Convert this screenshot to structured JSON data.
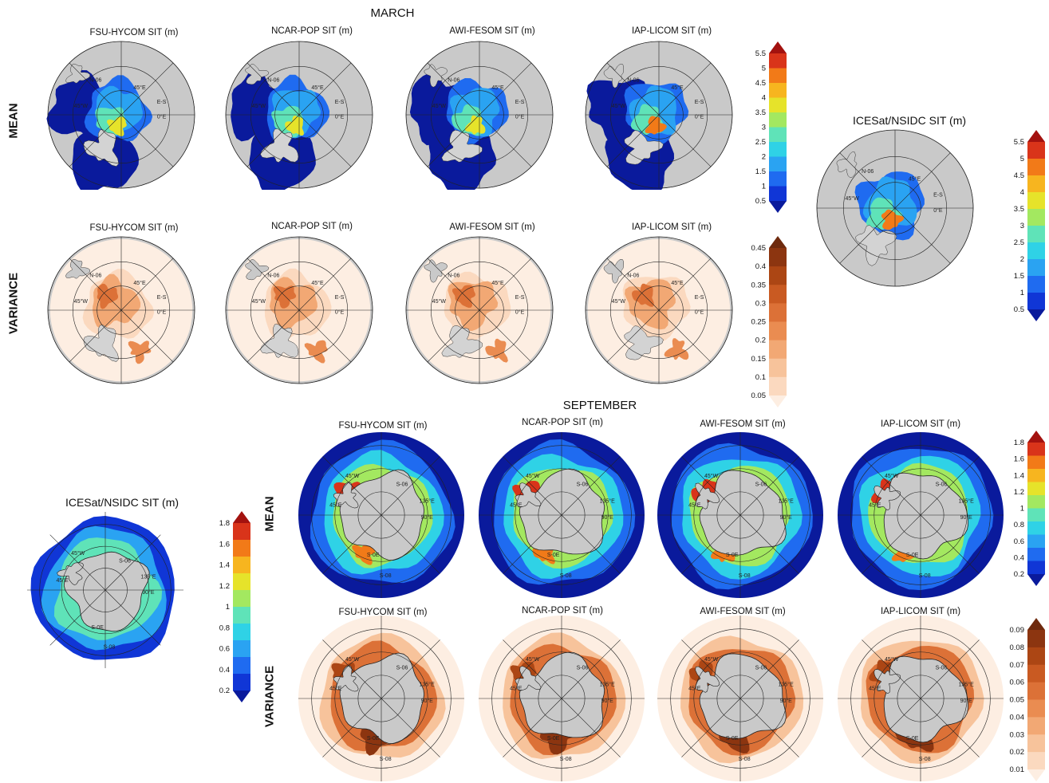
{
  "sections": {
    "march": "MARCH",
    "september": "SEPTEMBER"
  },
  "row_labels": {
    "mean": "MEAN",
    "variance": "VARIANCE"
  },
  "march_mean_titles": [
    "FSU-HYCOM SIT (m)",
    "NCAR-POP SIT (m)",
    "AWI-FESOM SIT (m)",
    "IAP-LICOM SIT (m)"
  ],
  "march_var_titles": [
    "FSU-HYCOM SIT (m)",
    "NCAR-POP SIT (m)",
    "AWI-FESOM SIT (m)",
    "IAP-LICOM SIT (m)"
  ],
  "sep_mean_titles": [
    "FSU-HYCOM SIT (m)",
    "NCAR-POP SIT (m)",
    "AWI-FESOM SIT (m)",
    "IAP-LICOM SIT (m)"
  ],
  "sep_var_titles": [
    "FSU-HYCOM SIT (m)",
    "NCAR-POP SIT (m)",
    "AWI-FESOM SIT (m)",
    "IAP-LICOM SIT (m)"
  ],
  "obs": {
    "arctic_title": "ICESat/NSIDC SIT (m)",
    "antarctic_title": "ICESat/NSIDC SIT (m)"
  },
  "map_labels": {
    "arctic": [
      "N-06",
      "45°W",
      "0°E",
      "E-S",
      "45°E"
    ],
    "antarctic": [
      "45°W",
      "45°E",
      "90°E",
      "135°E",
      "S-06",
      "S-0E",
      "S-08"
    ]
  },
  "colorbars": {
    "arctic_mean": [
      "5.5",
      "5",
      "4.5",
      "4",
      "3.5",
      "3",
      "2.5",
      "2",
      "1.5",
      "1",
      "0.5"
    ],
    "arctic_var": [
      "0.45",
      "0.4",
      "0.35",
      "0.3",
      "0.25",
      "0.2",
      "0.15",
      "0.1",
      "0.05"
    ],
    "obs_arctic": [
      "5.5",
      "5",
      "4.5",
      "4",
      "3.5",
      "3",
      "2.5",
      "2",
      "1.5",
      "1",
      "0.5"
    ],
    "obs_antarctic": [
      "1.8",
      "1.6",
      "1.4",
      "1.2",
      "1",
      "0.8",
      "0.6",
      "0.4",
      "0.2"
    ],
    "antarctic_mean": [
      "1.8",
      "1.6",
      "1.4",
      "1.2",
      "1",
      "0.8",
      "0.6",
      "0.4",
      "0.2"
    ],
    "antarctic_var": [
      "0.09",
      "0.08",
      "0.07",
      "0.06",
      "0.05",
      "0.04",
      "0.03",
      "0.02",
      "0.01"
    ]
  },
  "palettes": {
    "jet": [
      "#0a1a9c",
      "#1036d6",
      "#1f6bf0",
      "#2aa3f2",
      "#2fd2e6",
      "#5fe3b8",
      "#a3e860",
      "#e6e32a",
      "#f7b51f",
      "#f27a18",
      "#d9341a",
      "#a3120f"
    ],
    "orange": [
      "#fdeee2",
      "#fbd9bf",
      "#f7c39b",
      "#f2a874",
      "#ea8c51",
      "#dc7137",
      "#c95a22",
      "#ac4614",
      "#8c3510",
      "#6e2a0e"
    ]
  }
}
